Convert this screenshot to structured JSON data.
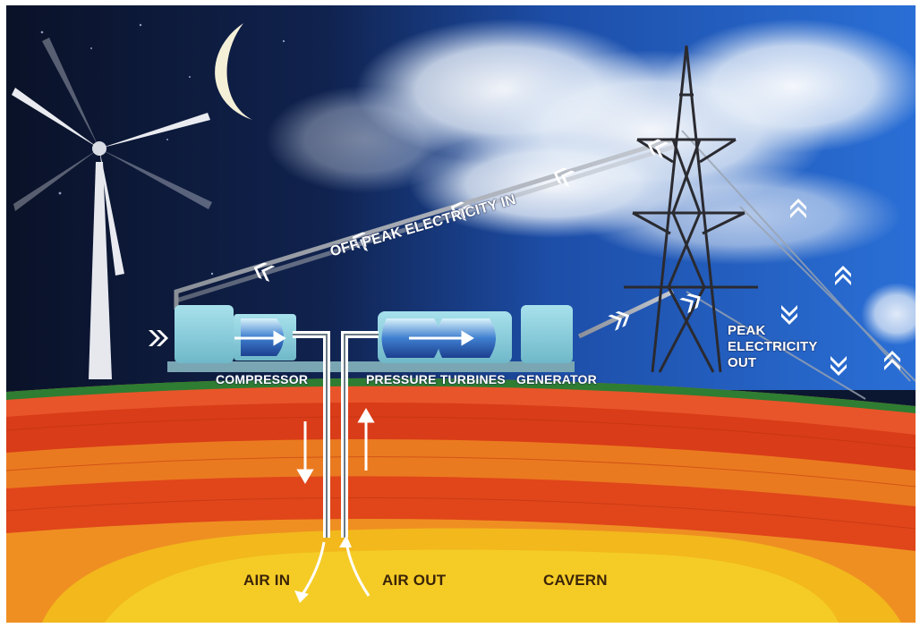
{
  "labels": {
    "off_peak_in": "OFF PEAK ELECTRICITY IN",
    "peak_out_1": "PEAK",
    "peak_out_2": "ELECTRICITY",
    "peak_out_3": "OUT",
    "compressor": "COMPRESSOR",
    "pressure_turbines": "PRESSURE TURBINES",
    "generator": "GENERATOR",
    "air_in": "AIR IN",
    "air_out": "AIR OUT",
    "cavern": "CAVERN"
  },
  "colors": {
    "sky_night": "#0b1630",
    "sky_day": "#1f5fc4",
    "ground_line": "#2e7d32",
    "rock_red": "#e0451a",
    "rock_orange": "#f08a1e",
    "cavern_yellow": "#f2c219",
    "machine": "#8fd3e0",
    "arrow": "#ffffff"
  },
  "icons": [
    "wind-turbine-icon",
    "moon-icon",
    "pylon-icon",
    "chevron-arrow-icon"
  ]
}
